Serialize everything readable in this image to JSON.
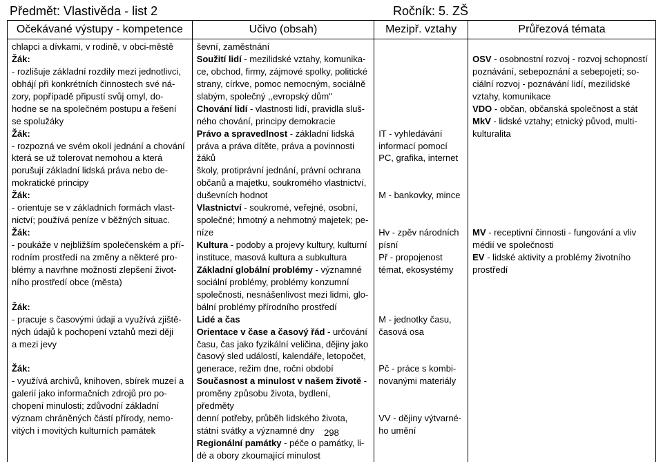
{
  "header": {
    "subject_title": "Předmět: Vlastivěda - list 2",
    "grade_title": "Ročník: 5. ZŠ"
  },
  "columns": {
    "c1": "Očekávané výstupy - kompetence",
    "c2": "Učivo (obsah)",
    "c3": "Mezipř. vztahy",
    "c4": "Průřezová témata"
  },
  "body": {
    "col1": {
      "l01": "chlapci a dívkami, v rodině, v obci-městě",
      "z1": "Žák:",
      "l02": "- rozlišuje základní rozdíly mezi jednotlivci,",
      "l03": "  obhájí při konkrétních činnostech své ná-",
      "l04": "  zory, popřípadě připustí svůj omyl, do-",
      "l05": "  hodne se na společném postupu a řešení",
      "l06": "  se spolužáky",
      "z2": "Žák:",
      "l07": "- rozpozná ve svém okolí jednání a chování",
      "l08": "  která se už tolerovat nemohou a která",
      "l09": "  porušují základní lidská práva nebo de-",
      "l10": "  mokratické principy",
      "z3": "Žák:",
      "l11": "- orientuje se v základních formách vlast-",
      "l12": "  nictví; používá peníze v běžných situac.",
      "z4": "Žák:",
      "l13": "- poukáže v nejbližším společenském a pří-",
      "l14": "  rodním prostředí na změny a některé pro-",
      "l15": "  blémy a navrhne možnosti zlepšení život-",
      "l16": "  ního prostředí obce (města)",
      "z5": "Žák:",
      "l17": "- pracuje s časovými údaji a využívá zjiště-",
      "l18": "  ných údajů k pochopení vztahů mezi ději",
      "l19": "  a mezi jevy",
      "z6": "Žák:",
      "l20": "- využívá archivů, knihoven, sbírek muzeí a",
      "l21": "  galerií jako informačních zdrojů pro po-",
      "l22": "  chopení minulosti; zdůvodní základní",
      "l23": "  význam chráněných částí přírody, nemo-",
      "l24": "  vitých i movitých kulturních památek"
    },
    "col2": {
      "l01": "ševní, zaměstnání",
      "b02": "Soužití lidí",
      "l02": " - mezilidské vztahy, komunika-",
      "l03": "ce, obchod, firmy, zájmové spolky, politické",
      "l04": "strany, církve, pomoc nemocným, sociálně",
      "l05": "slabým, společný ,,evropský dům\"",
      "b06": "Chování lidí",
      "l06": " - vlastnosti lidí, pravidla sluš-",
      "l07": "ného chování, principy demokracie",
      "b08": "Právo a spravedlnost",
      "l08": " - základní lidská",
      "l09": "práva a práva dítěte, práva a povinnosti žáků",
      "l10": "školy, protiprávní jednání, právní ochrana",
      "l11": "občanů a majetku, soukromého vlastnictví,",
      "l12": "duševních hodnot",
      "b13": "Vlastnictví",
      "l13": " - soukromé, veřejné, osobní,",
      "l14": "společné; hmotný a nehmotný majetek; pe-",
      "l15": "níze",
      "b16": "Kultura",
      "l16": " - podoby a projevy kultury, kulturní",
      "l17": "instituce, masová kultura a subkultura",
      "b18": "Základní globální problémy",
      "l18": " - významné",
      "l19": "sociální problémy, problémy konzumní",
      "l20": "společnosti, nesnášenlivost mezi lidmi, glo-",
      "l21": "bální problémy přírodního prostředí",
      "b22": "Lidé a čas",
      "b23": "Orientace v čase a časový řád",
      "l23": " - určování",
      "l24": "času, čas jako fyzikální veličina, dějiny jako",
      "l25": "časový sled událostí, kalendáře, letopočet,",
      "l26": "generace, režim dne, roční období",
      "b27": "Současnost a minulost v našem životě",
      "l27": " -",
      "l28": "proměny způsobu života, bydlení, předměty",
      "l29": "denní potřeby, průběh lidského života,",
      "l30": "státní svátky a významné dny",
      "b31": "Regionální památky",
      "l31": " - péče o památky, li-",
      "l32": "dé a obory zkoumající minulost"
    },
    "col3": {
      "l08": "IT - vyhledávání",
      "l09": "informací pomocí",
      "l10": "PC, grafika, internet",
      "l13": "M - bankovky, mince",
      "l16": "Hv - zpěv národních",
      "l17": "písní",
      "l18": "Př - propojenost",
      "l19": "témat, ekosystémy",
      "l23": "M - jednotky času,",
      "l24": "časová osa",
      "l27": "Pč - práce s kombi-",
      "l28": "novanými materiály",
      "l31": "VV - dějiny výtvarné-",
      "l32": "ho umění"
    },
    "col4": {
      "b02": "OSV",
      "l02": " - osobnostní rozvoj - rozvoj schopností",
      "l03": "poznávání, sebepoznání a sebepojetí; so-",
      "l04": "ciální rozvoj - poznávání lidí, mezilidské",
      "l05": "vztahy, komunikace",
      "b06": "VDO",
      "l06": " - občan, občanská společnost a stát",
      "b07": "MkV",
      "l07": " - lidské vztahy; etnický původ, multi-",
      "l08": "kulturalita",
      "b16": "MV",
      "l16": " - receptivní činnosti - fungování a vliv",
      "l17": "médií ve společnosti",
      "b18": "EV",
      "l18": " - lidské aktivity a problémy životního",
      "l19": "prostředí"
    }
  },
  "page_number": "298"
}
